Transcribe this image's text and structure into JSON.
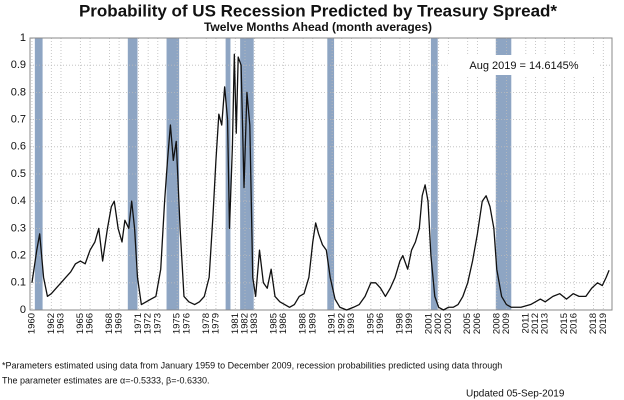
{
  "chart_data": {
    "type": "line",
    "title": "Probability of US Recession Predicted by Treasury Spread*",
    "subtitle": "Twelve Months Ahead (month averages)",
    "annotation": "Aug 2019 = 14.6145%",
    "footnotes": [
      "*Parameters estimated using data from January 1959 to December 2009, recession probabilities predicted using data through",
      "The parameter estimates are α=-0.5333, β=-0.6330."
    ],
    "updated": "Updated 05-Sep-2019",
    "xlim": [
      1959.8,
      2019.9
    ],
    "ylim": [
      0,
      1
    ],
    "yticks": [
      0,
      0.1,
      0.2,
      0.3,
      0.4,
      0.5,
      0.6,
      0.7,
      0.8,
      0.9,
      1
    ],
    "xticks": [
      1960,
      1962,
      1963,
      1965,
      1966,
      1968,
      1969,
      1971,
      1972,
      1973,
      1975,
      1976,
      1978,
      1979,
      1981,
      1982,
      1983,
      1985,
      1986,
      1988,
      1989,
      1991,
      1992,
      1993,
      1995,
      1996,
      1998,
      1999,
      2001,
      2002,
      2003,
      2005,
      2006,
      2008,
      2009,
      2011,
      2012,
      2013,
      2015,
      2016,
      2018,
      2019
    ],
    "grid": true,
    "recession_color": "#8ea5c3",
    "recessions": [
      [
        1960.3,
        1961.1
      ],
      [
        1969.9,
        1970.9
      ],
      [
        1973.9,
        1975.2
      ],
      [
        1980.0,
        1980.5
      ],
      [
        1981.5,
        1982.9
      ],
      [
        1990.5,
        1991.2
      ],
      [
        2001.2,
        2001.9
      ],
      [
        2007.9,
        2009.5
      ]
    ],
    "series": [
      {
        "name": "Probability",
        "color": "#111111",
        "x": [
          1960.0,
          1960.5,
          1960.8,
          1961.2,
          1961.6,
          1962.0,
          1962.5,
          1963,
          1963.5,
          1964,
          1964.5,
          1965,
          1965.5,
          1966,
          1966.5,
          1966.9,
          1967.3,
          1967.8,
          1968.2,
          1968.5,
          1968.9,
          1969.3,
          1969.6,
          1970.0,
          1970.3,
          1970.6,
          1970.9,
          1971.3,
          1971.8,
          1972.3,
          1972.8,
          1973.3,
          1973.7,
          1974.0,
          1974.3,
          1974.6,
          1974.9,
          1975.3,
          1975.7,
          1976.2,
          1976.8,
          1977.3,
          1977.8,
          1978.3,
          1978.7,
          1979.0,
          1979.3,
          1979.6,
          1979.9,
          1980.2,
          1980.4,
          1980.7,
          1980.9,
          1981.1,
          1981.3,
          1981.6,
          1981.9,
          1982.2,
          1982.5,
          1982.8,
          1983.1,
          1983.5,
          1983.9,
          1984.3,
          1984.7,
          1985.1,
          1985.6,
          1986.1,
          1986.6,
          1987.1,
          1987.6,
          1988.1,
          1988.6,
          1989.0,
          1989.3,
          1989.6,
          1990.0,
          1990.4,
          1990.8,
          1991.3,
          1991.8,
          1992.5,
          1993.2,
          1993.8,
          1994.4,
          1995.0,
          1995.5,
          1996.0,
          1996.5,
          1997.0,
          1997.5,
          1998.0,
          1998.3,
          1998.8,
          1999.2,
          1999.6,
          2000.0,
          2000.3,
          2000.6,
          2000.9,
          2001.2,
          2001.6,
          2002.0,
          2002.5,
          2003.0,
          2003.5,
          2004.0,
          2004.5,
          2005.0,
          2005.5,
          2006.0,
          2006.5,
          2006.9,
          2007.3,
          2007.7,
          2008.0,
          2008.5,
          2009.0,
          2009.5,
          2010.5,
          2011.5,
          2012.5,
          2013.0,
          2013.8,
          2014.5,
          2015.2,
          2015.9,
          2016.5,
          2017.2,
          2017.8,
          2018.4,
          2018.9,
          2019.3,
          2019.6
        ],
        "values": [
          0.1,
          0.22,
          0.28,
          0.12,
          0.05,
          0.06,
          0.08,
          0.1,
          0.12,
          0.14,
          0.17,
          0.18,
          0.17,
          0.22,
          0.25,
          0.3,
          0.18,
          0.3,
          0.38,
          0.4,
          0.3,
          0.25,
          0.33,
          0.3,
          0.4,
          0.3,
          0.12,
          0.02,
          0.03,
          0.04,
          0.05,
          0.15,
          0.4,
          0.55,
          0.68,
          0.55,
          0.62,
          0.3,
          0.05,
          0.03,
          0.02,
          0.03,
          0.05,
          0.12,
          0.35,
          0.55,
          0.72,
          0.68,
          0.82,
          0.7,
          0.3,
          0.6,
          0.94,
          0.65,
          0.93,
          0.9,
          0.45,
          0.8,
          0.68,
          0.12,
          0.05,
          0.22,
          0.1,
          0.08,
          0.15,
          0.05,
          0.03,
          0.02,
          0.01,
          0.02,
          0.05,
          0.06,
          0.12,
          0.25,
          0.32,
          0.28,
          0.24,
          0.22,
          0.12,
          0.04,
          0.01,
          0.0,
          0.01,
          0.02,
          0.05,
          0.1,
          0.1,
          0.08,
          0.05,
          0.08,
          0.12,
          0.18,
          0.2,
          0.15,
          0.22,
          0.25,
          0.3,
          0.42,
          0.46,
          0.4,
          0.2,
          0.05,
          0.01,
          0.0,
          0.01,
          0.01,
          0.02,
          0.05,
          0.1,
          0.18,
          0.28,
          0.4,
          0.42,
          0.38,
          0.3,
          0.15,
          0.05,
          0.02,
          0.01,
          0.01,
          0.02,
          0.04,
          0.03,
          0.05,
          0.06,
          0.04,
          0.06,
          0.05,
          0.05,
          0.08,
          0.1,
          0.09,
          0.12,
          0.146
        ]
      }
    ]
  }
}
